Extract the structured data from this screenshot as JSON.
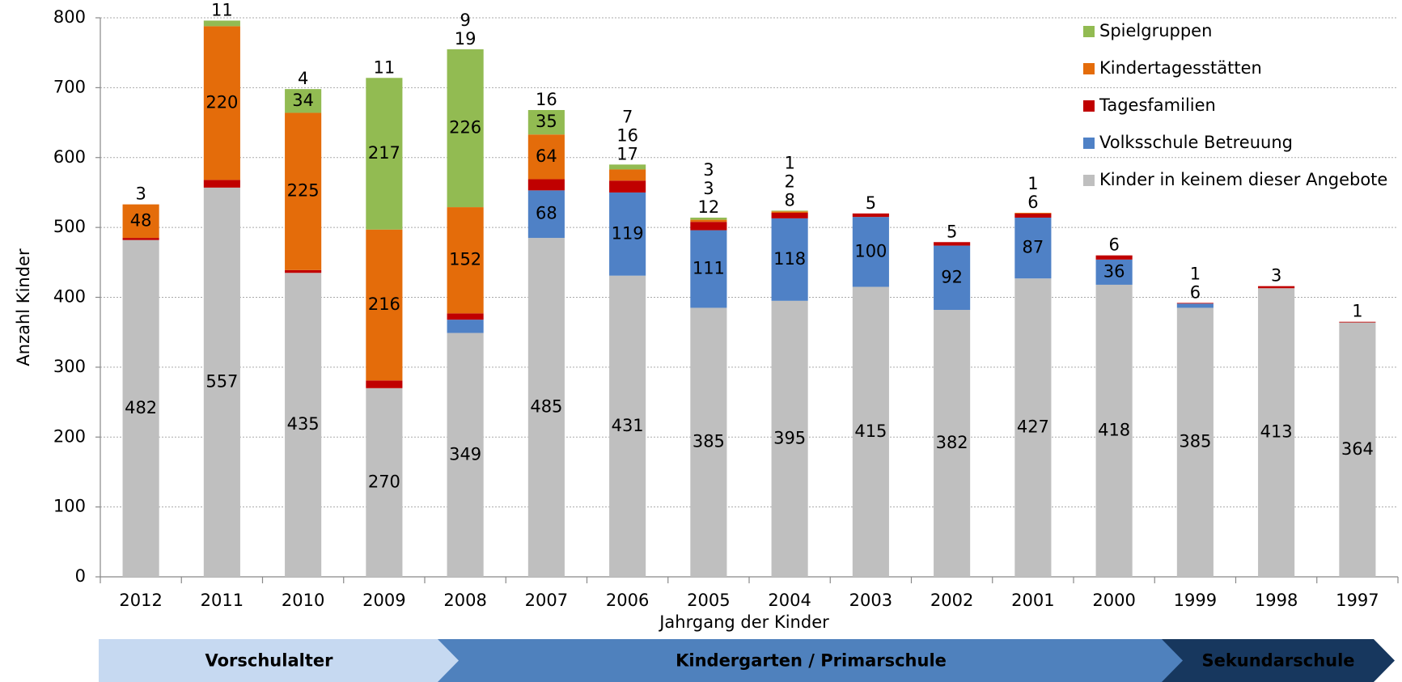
{
  "chart_data": {
    "type": "stacked_bar",
    "y_label": "Anzahl Kinder",
    "x_label": "Jahrgang der Kinder",
    "categories": [
      "2012",
      "2011",
      "2010",
      "2009",
      "2008",
      "2007",
      "2006",
      "2005",
      "2004",
      "2003",
      "2002",
      "2001",
      "2000",
      "1999",
      "1998",
      "1997"
    ],
    "series": [
      {
        "name": "Kinder in keinem dieser Angebote",
        "color": "#bfbfbf",
        "values": [
          482,
          557,
          435,
          270,
          349,
          485,
          431,
          385,
          395,
          415,
          382,
          427,
          418,
          385,
          413,
          364
        ]
      },
      {
        "name": "Volksschule Betreuung",
        "color": "#4f81c6",
        "values": [
          null,
          null,
          null,
          null,
          19,
          68,
          119,
          111,
          118,
          100,
          92,
          87,
          36,
          6,
          null,
          null
        ]
      },
      {
        "name": "Tagesfamilien",
        "color": "#c00000",
        "values": [
          3,
          11,
          4,
          11,
          9,
          16,
          17,
          12,
          8,
          5,
          5,
          6,
          6,
          1,
          3,
          1
        ]
      },
      {
        "name": "Kindertagesstätten",
        "color": "#e46c0a",
        "values": [
          48,
          220,
          225,
          216,
          152,
          64,
          16,
          3,
          2,
          null,
          null,
          1,
          null,
          null,
          null,
          null
        ]
      },
      {
        "name": "Spielgruppen",
        "color": "#92bb52",
        "values": [
          null,
          8,
          34,
          217,
          226,
          35,
          7,
          3,
          1,
          null,
          null,
          null,
          null,
          null,
          null,
          null
        ]
      }
    ],
    "ylim": [
      0,
      800
    ],
    "yticks": [
      0,
      100,
      200,
      300,
      400,
      500,
      600,
      700,
      800
    ],
    "grid": true,
    "legend": "top-right",
    "stages": [
      {
        "label": "Vorschulalter",
        "color": "#c6d9f1"
      },
      {
        "label": "Kindergarten / Primarschule",
        "color": "#4f81bd"
      },
      {
        "label": "Sekundarschule",
        "color": "#17375e"
      }
    ]
  }
}
